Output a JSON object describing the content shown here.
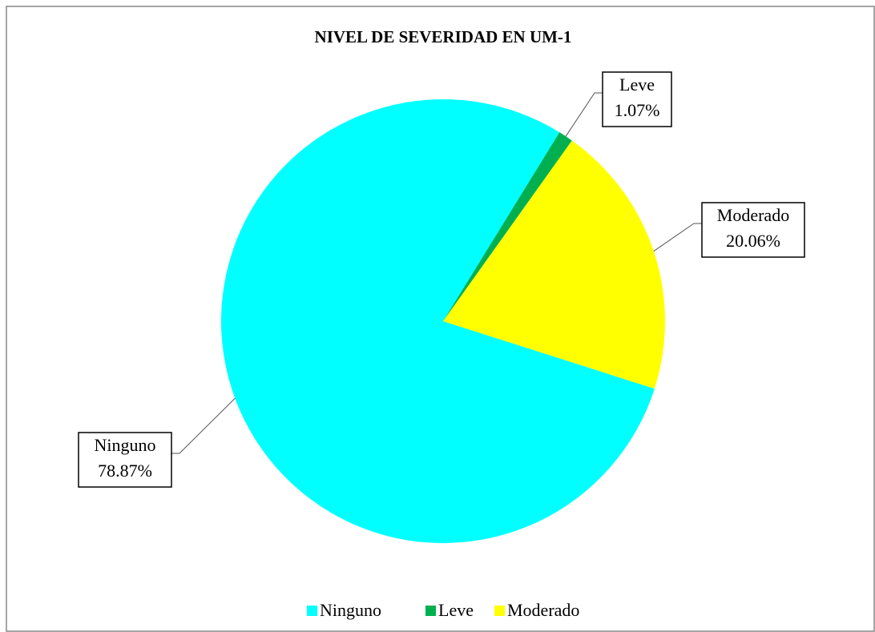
{
  "chart_data": {
    "type": "pie",
    "title": "NIVEL DE SEVERIDAD  EN UM-1",
    "categories": [
      "Ninguno",
      "Leve",
      "Moderado"
    ],
    "values": [
      78.87,
      1.07,
      20.06
    ],
    "value_labels": [
      "78.87%",
      "1.07%",
      "20.06%"
    ],
    "colors": [
      "#00ffff",
      "#00b050",
      "#ffff00"
    ],
    "legend": "bottom"
  }
}
